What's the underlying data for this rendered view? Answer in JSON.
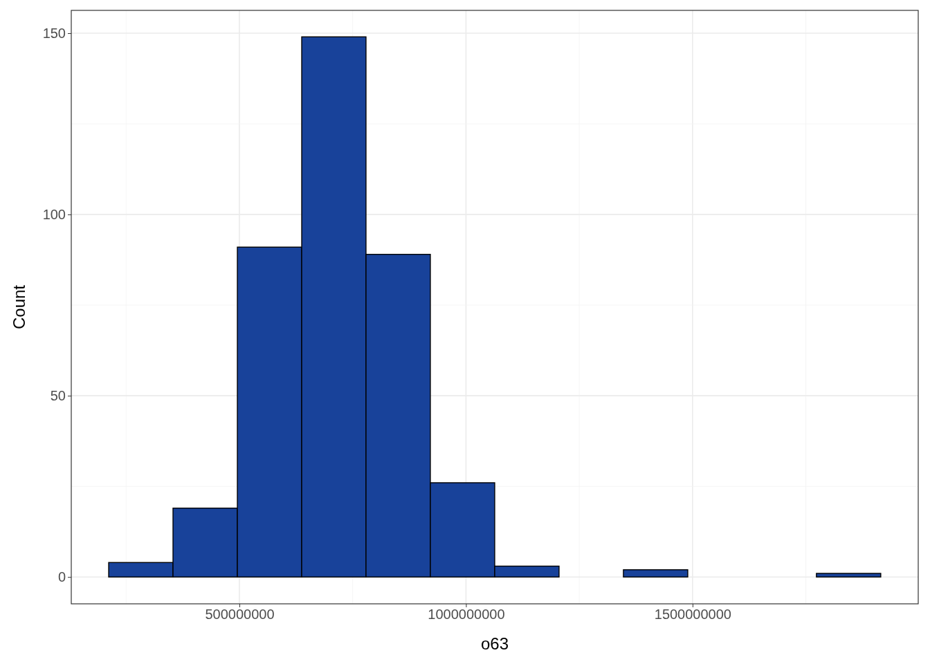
{
  "chart_data": {
    "type": "histogram",
    "xlabel": "o63",
    "ylabel": "Count",
    "bins": [
      211500000,
      353500000,
      495500000,
      637500000,
      779400000,
      921400000,
      1063400000,
      1205400000,
      1347400000,
      1489400000,
      1631400000,
      1773300000,
      1915300000
    ],
    "values": [
      4,
      19,
      91,
      149,
      89,
      26,
      3,
      0,
      2,
      0,
      0,
      1
    ],
    "color": "#18429a",
    "xlim": [
      129000000,
      1998000000
    ],
    "xticks": [
      500000000,
      1000000000,
      1500000000
    ],
    "ylim": [
      -7.4,
      156.3
    ],
    "yticks": [
      0,
      50,
      100,
      150
    ],
    "grid": true
  }
}
